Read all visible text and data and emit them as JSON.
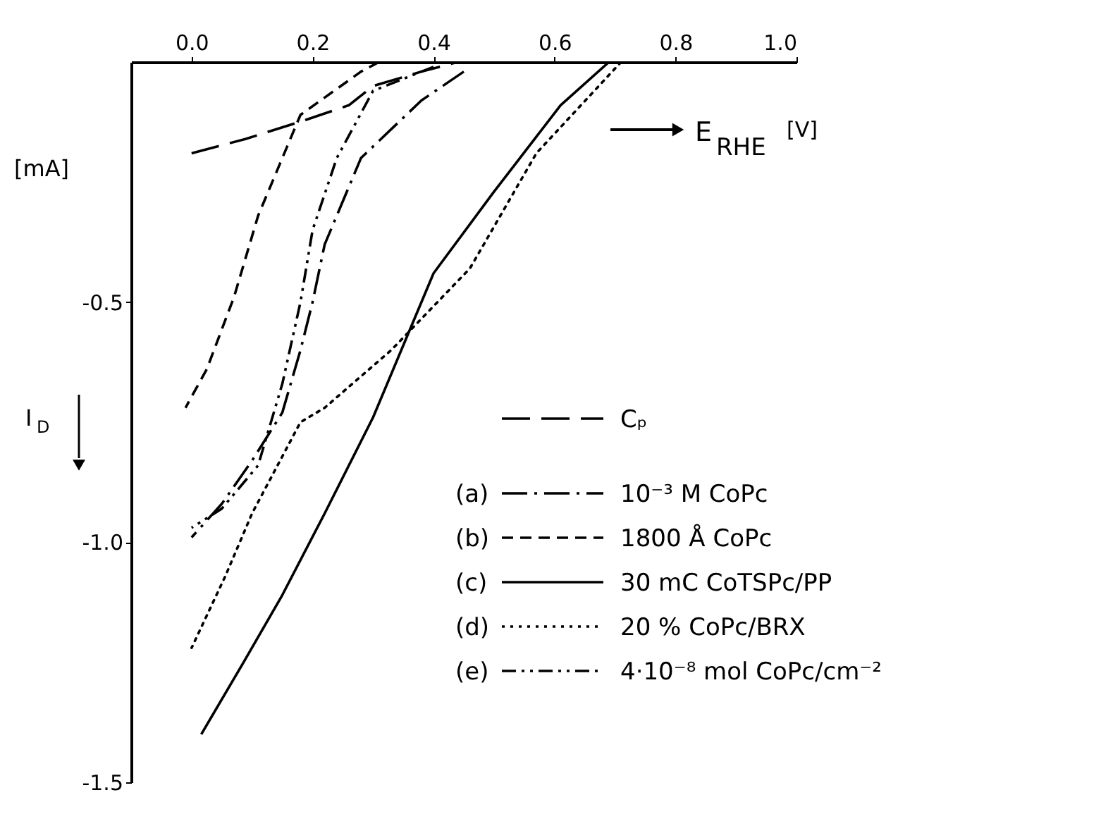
{
  "chart_data": {
    "type": "line",
    "xlabel": "E$_{RHE}$ [V]",
    "ylabel": "I$_{D}$",
    "annotations": [
      "[mA]"
    ],
    "xlim": [
      -0.1,
      1.0
    ],
    "xticks": [
      {
        "value": 0,
        "label": "0.0"
      },
      0.2,
      0.4,
      0.6,
      0.8,
      {
        "value": 1.0,
        "label": "1.0"
      }
    ],
    "ylim": [
      -1.5,
      0
    ],
    "yticks": [
      -0.5,
      {
        "value": -1.0,
        "label": "-1.0"
      },
      -1.5
    ],
    "legend": "bottom right",
    "grid": false,
    "series": [
      {
        "name": "Cₚ",
        "color": "#000000",
        "line_style": "longdash",
        "x": [
          0.0,
          0.09,
          0.19,
          0.26,
          0.3,
          0.38,
          0.44
        ],
        "values": [
          -0.19,
          -0.16,
          -0.12,
          -0.09,
          -0.05,
          -0.02,
          0.0
        ]
      },
      {
        "name": "(a) 10⁻³ M CoPc",
        "color": "#000000",
        "line_style": "dashdot",
        "x": [
          0.45,
          0.38,
          0.28,
          0.22,
          0.2,
          0.18,
          0.15,
          0.1,
          0.05,
          0.0
        ],
        "values": [
          -0.02,
          -0.08,
          -0.2,
          -0.38,
          -0.5,
          -0.6,
          -0.73,
          -0.83,
          -0.92,
          -0.99
        ]
      },
      {
        "name": "(b) 1800 Å CoPc",
        "color": "#000000",
        "line_style": "dashed",
        "x": [
          0.31,
          0.28,
          0.18,
          0.15,
          0.11,
          0.07,
          0.025,
          -0.01
        ],
        "values": [
          0.0,
          -0.02,
          -0.11,
          -0.2,
          -0.32,
          -0.49,
          -0.64,
          -0.72
        ]
      },
      {
        "name": "(c) 30 mC CoTSPc/PP",
        "color": "#000000",
        "line_style": "solid",
        "x": [
          0.69,
          0.61,
          0.5,
          0.4,
          0.36,
          0.3,
          0.22,
          0.15,
          0.086,
          0.016
        ],
        "values": [
          0.0,
          -0.09,
          -0.27,
          -0.44,
          -0.56,
          -0.74,
          -0.94,
          -1.11,
          -1.25,
          -1.4
        ]
      },
      {
        "name": "(d) 20 % CoPc/BRX",
        "color": "#000000",
        "line_style": "dotted",
        "x": [
          0.71,
          0.57,
          0.46,
          0.33,
          0.22,
          0.18,
          0.1,
          0.056,
          0.0
        ],
        "values": [
          0.0,
          -0.19,
          -0.43,
          -0.6,
          -0.72,
          -0.75,
          -0.94,
          -1.07,
          -1.22
        ]
      },
      {
        "name": "(e) 4·10⁻⁸ mol CoPc/cm⁻²",
        "color": "#000000",
        "line_style": "dashdotdot",
        "x": [
          0.4,
          0.3,
          0.24,
          0.2,
          0.18,
          0.15,
          0.11,
          0.05,
          0.0
        ],
        "values": [
          -0.01,
          -0.06,
          -0.2,
          -0.35,
          -0.5,
          -0.67,
          -0.84,
          -0.93,
          -0.97
        ]
      }
    ]
  }
}
